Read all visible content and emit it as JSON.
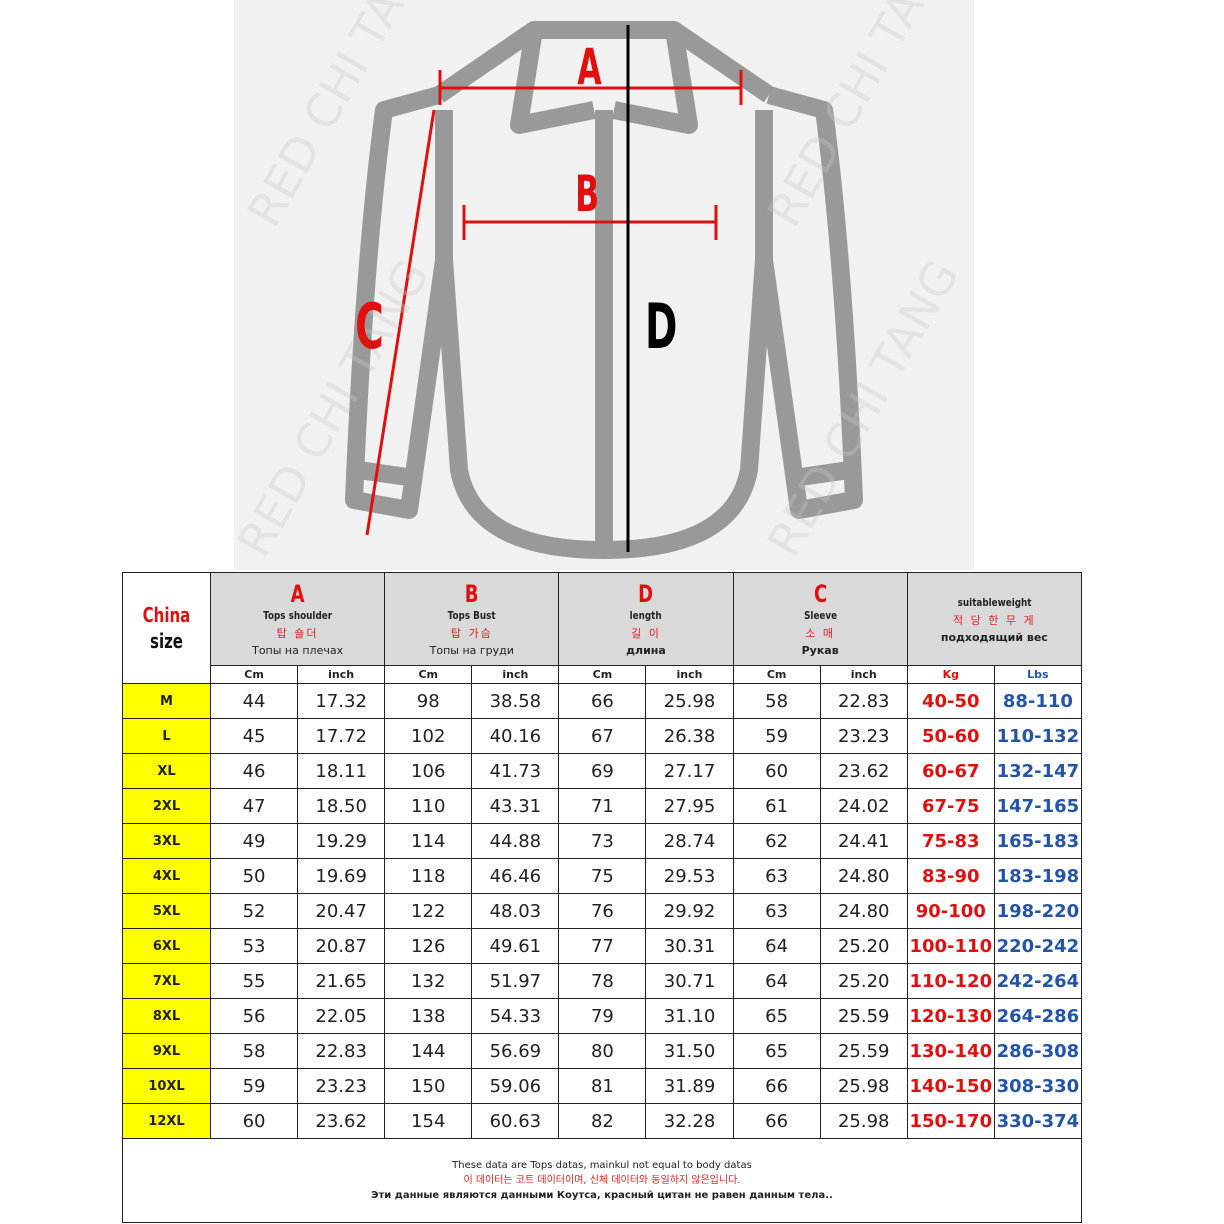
{
  "watermark": "RED CHI TANG",
  "figure_labels": {
    "a": "A",
    "b": "B",
    "c": "C",
    "d": "D"
  },
  "header": {
    "china": "China",
    "size": "size",
    "groups": [
      {
        "letter": "A",
        "en": "Tops shoulder",
        "ko": "탑 숄더",
        "ru": "Топы на плечах"
      },
      {
        "letter": "B",
        "en": "Tops Bust",
        "ko": "탑 가슴",
        "ru": "Топы на груди"
      },
      {
        "letter": "D",
        "en": "length",
        "ko": "길 이",
        "ru": "длина"
      },
      {
        "letter": "C",
        "en": "Sleeve",
        "ko": "소 매",
        "ru": "Рукав"
      },
      {
        "en": "suitableweight",
        "ko": "적 당 한 무 게",
        "ru": "подходящий вес"
      }
    ],
    "units": [
      "Cm",
      "inch",
      "Cm",
      "inch",
      "Cm",
      "inch",
      "Cm",
      "inch",
      "Kg",
      "Lbs"
    ]
  },
  "colors": {
    "kg": "#e01010",
    "lbs": "#2255aa",
    "size_bg": "#ffff00",
    "header_bg": "#d9d9d9"
  },
  "rows": [
    [
      "M",
      "44",
      "17.32",
      "98",
      "38.58",
      "66",
      "25.98",
      "58",
      "22.83",
      "40-50",
      "88-110"
    ],
    [
      "L",
      "45",
      "17.72",
      "102",
      "40.16",
      "67",
      "26.38",
      "59",
      "23.23",
      "50-60",
      "110-132"
    ],
    [
      "XL",
      "46",
      "18.11",
      "106",
      "41.73",
      "69",
      "27.17",
      "60",
      "23.62",
      "60-67",
      "132-147"
    ],
    [
      "2XL",
      "47",
      "18.50",
      "110",
      "43.31",
      "71",
      "27.95",
      "61",
      "24.02",
      "67-75",
      "147-165"
    ],
    [
      "3XL",
      "49",
      "19.29",
      "114",
      "44.88",
      "73",
      "28.74",
      "62",
      "24.41",
      "75-83",
      "165-183"
    ],
    [
      "4XL",
      "50",
      "19.69",
      "118",
      "46.46",
      "75",
      "29.53",
      "63",
      "24.80",
      "83-90",
      "183-198"
    ],
    [
      "5XL",
      "52",
      "20.47",
      "122",
      "48.03",
      "76",
      "29.92",
      "63",
      "24.80",
      "90-100",
      "198-220"
    ],
    [
      "6XL",
      "53",
      "20.87",
      "126",
      "49.61",
      "77",
      "30.31",
      "64",
      "25.20",
      "100-110",
      "220-242"
    ],
    [
      "7XL",
      "55",
      "21.65",
      "132",
      "51.97",
      "78",
      "30.71",
      "64",
      "25.20",
      "110-120",
      "242-264"
    ],
    [
      "8XL",
      "56",
      "22.05",
      "138",
      "54.33",
      "79",
      "31.10",
      "65",
      "25.59",
      "120-130",
      "264-286"
    ],
    [
      "9XL",
      "58",
      "22.83",
      "144",
      "56.69",
      "80",
      "31.50",
      "65",
      "25.59",
      "130-140",
      "286-308"
    ],
    [
      "10XL",
      "59",
      "23.23",
      "150",
      "59.06",
      "81",
      "31.89",
      "66",
      "25.98",
      "140-150",
      "308-330"
    ],
    [
      "12XL",
      "60",
      "23.62",
      "154",
      "60.63",
      "82",
      "32.28",
      "66",
      "25.98",
      "150-170",
      "330-374"
    ]
  ],
  "footer": {
    "en": "These data are Tops datas, mainkul not equal to body datas",
    "ko": "이 데이터는 코트 데이터이며, 신체 데이터와 동일하지 않은입니다.",
    "ru": "Эти данные являются данными Коутса, красный цитан не равен данным тела.."
  }
}
